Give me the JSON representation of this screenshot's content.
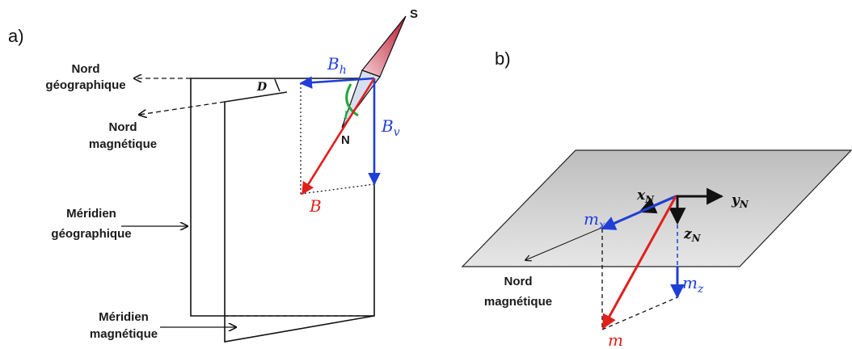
{
  "panel_a": {
    "label": "a)",
    "nord_geo_line1": "Nord",
    "nord_geo_line2": "géographique",
    "nord_mag_line1": "Nord",
    "nord_mag_line2": "magnétique",
    "meridien_geo_line1": "Méridien",
    "meridien_geo_line2": "géographique",
    "meridien_mag_line1": "Méridien",
    "meridien_mag_line2": "magnétique",
    "angle_D": "D",
    "angle_I": "I",
    "compass_S": "S",
    "compass_N": "N",
    "Bh_base": "B",
    "Bh_sub": "h",
    "Bv_base": "B",
    "Bv_sub": "v",
    "B": "B"
  },
  "panel_b": {
    "label": "b)",
    "xN_base": "x",
    "xN_sub": "N",
    "yN_base": "y",
    "yN_sub": "N",
    "zN_base": "z",
    "zN_sub": "N",
    "mx_base": "m",
    "mx_sub": "x",
    "mz_base": "m",
    "mz_sub": "z",
    "m": "m",
    "nord_mag_line1": "Nord",
    "nord_mag_line2": "magnétique"
  },
  "colors": {
    "blue": "#1f3fd6",
    "red": "#e0201c",
    "green": "#1fa83a",
    "plane": "#cfcfcf",
    "compass_light": "#d7def0",
    "compass_red": "#c0283a"
  }
}
